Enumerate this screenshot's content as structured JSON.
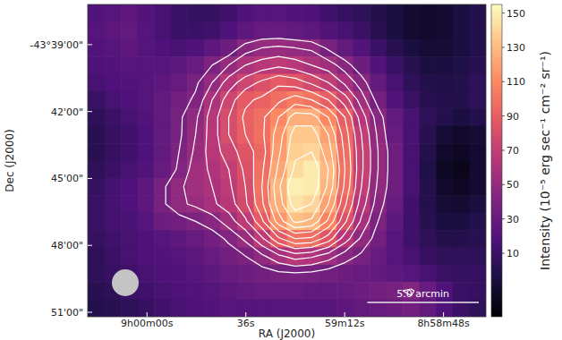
{
  "chart_data": {
    "type": "heatmap",
    "x_label": "RA (J2000)",
    "y_label": "Dec (J2000)",
    "xlim": [
      32414.4,
      32317.7
    ],
    "xticks": [
      {
        "value": 32400,
        "label": "9h00m00s"
      },
      {
        "value": 32376,
        "label": "36s"
      },
      {
        "value": 32352,
        "label": "59m12s"
      },
      {
        "value": 32328,
        "label": "8h58m48s"
      }
    ],
    "ylim": [
      -2617.2,
      -2631.2
    ],
    "yticks": [
      {
        "value": -2619,
        "label": "-43°39'00\""
      },
      {
        "value": -2622,
        "label": "42'00\""
      },
      {
        "value": -2625,
        "label": "45'00\""
      },
      {
        "value": -2628,
        "label": "48'00\""
      },
      {
        "value": -2631,
        "label": "51'00\""
      }
    ],
    "z": [
      [
        20,
        22,
        25,
        20,
        15,
        10,
        8,
        8,
        12,
        18,
        22,
        22,
        20,
        18,
        12,
        8,
        5,
        0,
        -5,
        -10,
        -12,
        -10,
        -5,
        0
      ],
      [
        22,
        25,
        28,
        22,
        15,
        10,
        10,
        12,
        18,
        25,
        30,
        30,
        28,
        25,
        20,
        15,
        10,
        2,
        -5,
        -10,
        -12,
        -10,
        -5,
        0
      ],
      [
        20,
        22,
        25,
        22,
        18,
        15,
        18,
        25,
        32,
        45,
        50,
        52,
        50,
        48,
        38,
        28,
        20,
        10,
        2,
        -5,
        -8,
        -8,
        -5,
        0
      ],
      [
        18,
        20,
        22,
        22,
        22,
        25,
        30,
        40,
        50,
        60,
        65,
        68,
        65,
        60,
        55,
        45,
        32,
        20,
        10,
        2,
        -5,
        -5,
        -2,
        2
      ],
      [
        15,
        18,
        20,
        22,
        25,
        30,
        38,
        50,
        65,
        75,
        82,
        88,
        85,
        78,
        70,
        58,
        45,
        28,
        15,
        5,
        0,
        -2,
        0,
        5
      ],
      [
        10,
        15,
        18,
        22,
        28,
        35,
        42,
        60,
        75,
        88,
        92,
        98,
        105,
        100,
        90,
        75,
        55,
        36,
        20,
        10,
        2,
        0,
        0,
        5
      ],
      [
        5,
        10,
        15,
        20,
        28,
        38,
        48,
        65,
        80,
        92,
        98,
        110,
        125,
        125,
        110,
        90,
        65,
        45,
        28,
        15,
        5,
        0,
        -5,
        0
      ],
      [
        2,
        8,
        12,
        18,
        28,
        38,
        50,
        65,
        80,
        90,
        98,
        115,
        135,
        135,
        120,
        95,
        70,
        48,
        30,
        15,
        2,
        -8,
        -12,
        -8
      ],
      [
        2,
        8,
        12,
        18,
        28,
        40,
        52,
        65,
        75,
        85,
        95,
        118,
        138,
        140,
        125,
        98,
        72,
        50,
        33,
        15,
        0,
        -12,
        -15,
        -10
      ],
      [
        5,
        10,
        15,
        20,
        30,
        42,
        55,
        62,
        70,
        82,
        98,
        122,
        142,
        148,
        130,
        100,
        72,
        50,
        33,
        15,
        -2,
        -15,
        -18,
        -10
      ],
      [
        8,
        14,
        18,
        25,
        38,
        48,
        55,
        60,
        68,
        80,
        100,
        128,
        150,
        148,
        128,
        98,
        70,
        48,
        33,
        15,
        0,
        -12,
        -15,
        -10
      ],
      [
        10,
        14,
        18,
        25,
        38,
        48,
        52,
        58,
        65,
        78,
        98,
        125,
        145,
        140,
        120,
        92,
        65,
        45,
        30,
        12,
        0,
        -8,
        -10,
        -5
      ],
      [
        10,
        14,
        16,
        22,
        32,
        35,
        40,
        45,
        55,
        68,
        88,
        115,
        132,
        128,
        108,
        82,
        58,
        40,
        26,
        12,
        2,
        -5,
        -5,
        0
      ],
      [
        8,
        12,
        15,
        18,
        22,
        26,
        30,
        35,
        42,
        52,
        68,
        88,
        100,
        98,
        85,
        65,
        48,
        35,
        22,
        12,
        5,
        0,
        0,
        2
      ],
      [
        5,
        10,
        15,
        18,
        20,
        22,
        25,
        30,
        35,
        40,
        48,
        58,
        65,
        62,
        55,
        45,
        38,
        30,
        22,
        15,
        8,
        5,
        5,
        5
      ],
      [
        5,
        8,
        12,
        15,
        18,
        20,
        22,
        26,
        30,
        32,
        35,
        38,
        39,
        38,
        35,
        32,
        30,
        28,
        25,
        22,
        15,
        10,
        8,
        8
      ],
      [
        2,
        5,
        10,
        12,
        15,
        18,
        20,
        22,
        25,
        28,
        30,
        30,
        30,
        28,
        28,
        30,
        32,
        35,
        38,
        42,
        30,
        18,
        10,
        8
      ],
      [
        0,
        2,
        5,
        8,
        12,
        15,
        18,
        20,
        22,
        22,
        22,
        22,
        22,
        22,
        22,
        25,
        28,
        30,
        32,
        35,
        28,
        18,
        10,
        5
      ]
    ],
    "colorbar": {
      "label": "Intensity (10⁻⁵ erg sec⁻¹ cm⁻² sr⁻¹)",
      "range": [
        -27,
        155
      ],
      "ticks": [
        10,
        30,
        50,
        70,
        90,
        110,
        130,
        150
      ]
    },
    "contour_levels": [
      40,
      50,
      60,
      70,
      80,
      90,
      100,
      110,
      120,
      130,
      140
    ],
    "scale_bar": {
      "label": "5.0 arcmin",
      "length": 5
    }
  }
}
